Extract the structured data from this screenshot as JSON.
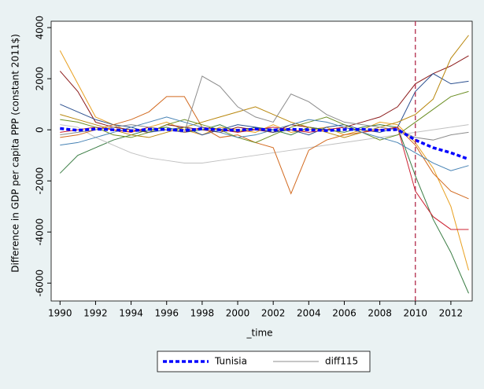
{
  "chart_data": {
    "type": "line",
    "y_label": "Difference in GDP per capita PPP (constant 2011$)",
    "x_label": "_time",
    "x": [
      1990,
      1991,
      1992,
      1993,
      1994,
      1995,
      1996,
      1997,
      1998,
      1999,
      2000,
      2001,
      2002,
      2003,
      2004,
      2005,
      2006,
      2007,
      2008,
      2009,
      2010,
      2011,
      2012,
      2013
    ],
    "xlim": [
      1989.5,
      2013.2
    ],
    "xticks": [
      1990,
      1992,
      1994,
      1996,
      1998,
      2000,
      2002,
      2004,
      2006,
      2008,
      2010,
      2012
    ],
    "ylim": [
      -6700,
      4250
    ],
    "yticks": [
      -6000,
      -4000,
      -2000,
      0,
      2000,
      4000
    ],
    "xline": 2010,
    "xline_color": "#b22a4a",
    "series": [
      {
        "color": "#e8a020",
        "values": [
          3100,
          1800,
          500,
          200,
          -100,
          100,
          300,
          0,
          -200,
          100,
          0,
          -100,
          200,
          -100,
          0,
          100,
          -200,
          0,
          300,
          200,
          -500,
          -1500,
          -3000,
          -5500
        ]
      },
      {
        "color": "#8b1a1a",
        "values": [
          2300,
          1500,
          300,
          100,
          0,
          -100,
          200,
          100,
          0,
          -100,
          100,
          0,
          -100,
          200,
          100,
          0,
          100,
          300,
          500,
          900,
          1800,
          2200,
          2500,
          2900
        ]
      },
      {
        "color": "#3a7d44",
        "values": [
          -1700,
          -1000,
          -700,
          -400,
          -200,
          0,
          100,
          -100,
          0,
          200,
          -100,
          100,
          0,
          -200,
          100,
          0,
          -100,
          100,
          200,
          100,
          -1800,
          -3500,
          -4800,
          -6400
        ]
      },
      {
        "color": "#c0c0c0",
        "values": [
          200,
          100,
          -300,
          -600,
          -900,
          -1100,
          -1200,
          -1300,
          -1300,
          -1200,
          -1100,
          -1000,
          -900,
          -800,
          -700,
          -600,
          -500,
          -400,
          -300,
          -200,
          -100,
          0,
          100,
          200
        ]
      },
      {
        "color": "#2a4f8f",
        "values": [
          1000,
          700,
          400,
          200,
          100,
          -100,
          0,
          100,
          -200,
          0,
          200,
          100,
          -100,
          0,
          -200,
          100,
          200,
          0,
          -100,
          100,
          1500,
          2200,
          1800,
          1900
        ]
      },
      {
        "color": "#d2691e",
        "values": [
          -300,
          -200,
          0,
          200,
          400,
          700,
          1300,
          1300,
          100,
          -300,
          -200,
          -500,
          -700,
          -2500,
          -800,
          -400,
          -200,
          -100,
          0,
          100,
          -600,
          -1700,
          -2400,
          -2700
        ]
      },
      {
        "color": "#b8860b",
        "values": [
          600,
          400,
          200,
          0,
          -200,
          -300,
          -100,
          100,
          300,
          500,
          700,
          900,
          600,
          300,
          100,
          -100,
          -300,
          -100,
          100,
          300,
          600,
          1200,
          2800,
          3700
        ]
      },
      {
        "color": "#cc2030",
        "values": [
          -100,
          0,
          100,
          0,
          -100,
          100,
          0,
          -100,
          100,
          0,
          -100,
          0,
          100,
          0,
          -100,
          0,
          100,
          -100,
          0,
          100,
          -2400,
          -3400,
          -3900,
          -3900
        ]
      },
      {
        "color": "#6b8e23",
        "values": [
          400,
          300,
          100,
          -200,
          -300,
          -100,
          200,
          400,
          200,
          0,
          -300,
          -500,
          -200,
          100,
          300,
          500,
          200,
          -100,
          -400,
          -200,
          300,
          800,
          1300,
          1500
        ]
      },
      {
        "color": "#4682b4",
        "values": [
          -600,
          -500,
          -300,
          -100,
          100,
          300,
          500,
          300,
          100,
          -100,
          -300,
          -200,
          0,
          200,
          400,
          300,
          100,
          -100,
          -300,
          -500,
          -900,
          -1300,
          -1600,
          -1400
        ]
      },
      {
        "name": "diff115",
        "color": "#8c8c8c",
        "values": [
          -200,
          -100,
          0,
          100,
          200,
          100,
          0,
          -100,
          2100,
          1700,
          900,
          500,
          300,
          1400,
          1100,
          600,
          300,
          200,
          100,
          0,
          -300,
          -400,
          -200,
          -100
        ]
      },
      {
        "name": "Tunisia",
        "color": "#0000ff",
        "line_style": "dashed",
        "values": [
          50,
          -20,
          30,
          0,
          -40,
          20,
          10,
          -30,
          40,
          0,
          -20,
          30,
          -10,
          20,
          0,
          -30,
          10,
          20,
          -20,
          10,
          -400,
          -700,
          -900,
          -1150
        ]
      }
    ]
  }
}
